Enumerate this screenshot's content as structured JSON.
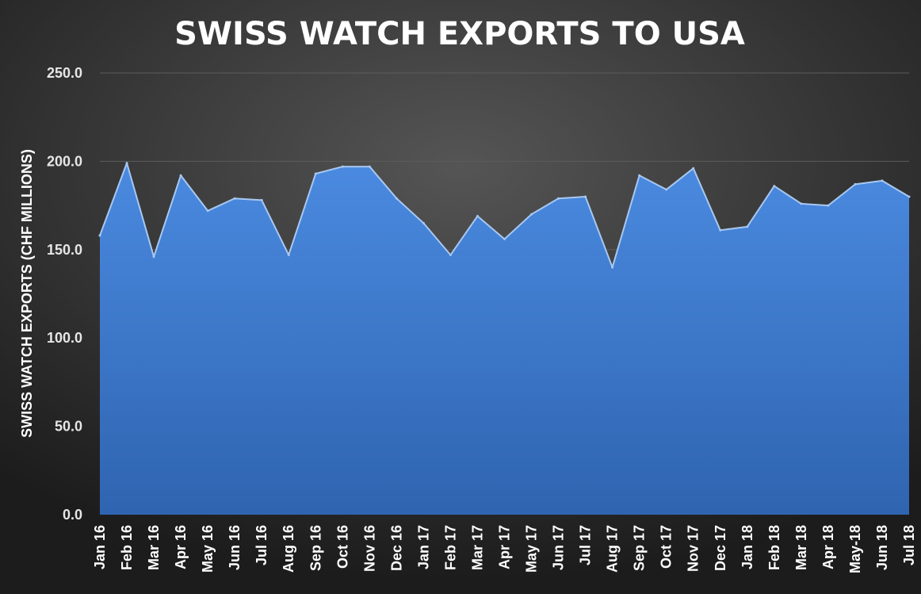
{
  "chart_data": {
    "type": "area",
    "title": "SWISS WATCH EXPORTS TO USA",
    "xlabel": "",
    "ylabel": "SWISS WATCH EXPORTS (CHF  MILLIONS)",
    "ylim": [
      0,
      250
    ],
    "yticks": [
      "0.0",
      "50.0",
      "100.0",
      "150.0",
      "200.0",
      "250.0"
    ],
    "grid": true,
    "legend": "none",
    "categories": [
      "Jan 16",
      "Feb 16",
      "Mar 16",
      "Apr 16",
      "May 16",
      "Jun 16",
      "Jul 16",
      "Aug 16",
      "Sep 16",
      "Oct 16",
      "Nov 16",
      "Dec 16",
      "Jan 17",
      "Feb 17",
      "Mar 17",
      "Apr 17",
      "May 17",
      "Jun 17",
      "Jul 17",
      "Aug 17",
      "Sep 17",
      "Oct 17",
      "Nov 17",
      "Dec 17",
      "Jan 18",
      "Feb 18",
      "Mar 18",
      "Apr 18",
      "May-18",
      "Jun 18",
      "Jul 18"
    ],
    "series": [
      {
        "values": [
          158,
          199,
          146,
          192,
          172,
          179,
          178,
          147,
          193,
          197,
          197,
          179,
          165,
          147,
          169,
          156,
          170,
          179,
          180,
          140,
          192,
          184,
          196,
          161,
          163,
          186,
          176,
          175,
          187,
          189,
          180
        ]
      }
    ],
    "colors": {
      "area_top": "#4a8ae0",
      "area_bottom": "#2f64b0",
      "line": "#a8c8f0"
    }
  }
}
